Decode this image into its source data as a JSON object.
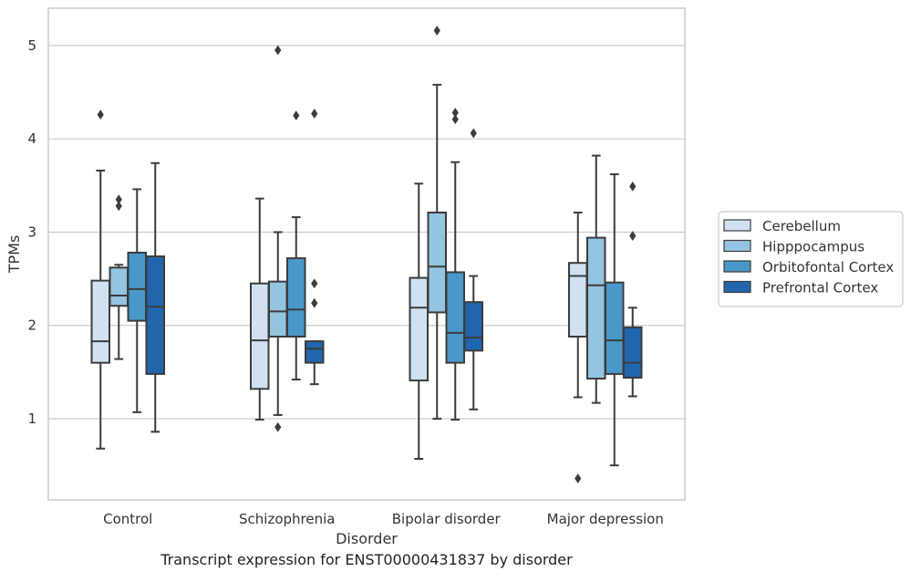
{
  "caption": "Transcript expression for ENST00000431837 by disorder",
  "chart_data": {
    "type": "box",
    "title": "",
    "xlabel": "Disorder",
    "ylabel": "TPMs",
    "categories": [
      "Control",
      "Schizophrenia",
      "Bipolar disorder",
      "Major depression"
    ],
    "ylim": [
      0.13,
      5.4
    ],
    "yticks": [
      "1",
      "2",
      "3",
      "4",
      "5"
    ],
    "grid": "horizontal",
    "legend_position": "right",
    "series": [
      {
        "name": "Cerebellum",
        "color": "#d0e1f2",
        "boxes": [
          {
            "whislo": 0.68,
            "q1": 1.6,
            "med": 1.83,
            "q3": 2.48,
            "whishi": 3.66,
            "fliers": [
              4.26
            ]
          },
          {
            "whislo": 0.99,
            "q1": 1.32,
            "med": 1.84,
            "q3": 2.45,
            "whishi": 3.36,
            "fliers": []
          },
          {
            "whislo": 0.57,
            "q1": 1.41,
            "med": 2.19,
            "q3": 2.51,
            "whishi": 3.52,
            "fliers": []
          },
          {
            "whislo": 1.23,
            "q1": 1.88,
            "med": 2.53,
            "q3": 2.67,
            "whishi": 3.21,
            "fliers": [
              0.36
            ]
          }
        ]
      },
      {
        "name": "Hipppocampus",
        "color": "#94c4df",
        "boxes": [
          {
            "whislo": 1.64,
            "q1": 2.21,
            "med": 2.32,
            "q3": 2.62,
            "whishi": 2.65,
            "fliers": [
              3.28,
              3.35
            ]
          },
          {
            "whislo": 1.04,
            "q1": 1.88,
            "med": 2.15,
            "q3": 2.47,
            "whishi": 3.0,
            "fliers": [
              0.91,
              4.95
            ]
          },
          {
            "whislo": 1.0,
            "q1": 2.14,
            "med": 2.63,
            "q3": 3.21,
            "whishi": 4.58,
            "fliers": [
              5.16
            ]
          },
          {
            "whislo": 1.17,
            "q1": 1.43,
            "med": 2.43,
            "q3": 2.94,
            "whishi": 3.82,
            "fliers": []
          }
        ]
      },
      {
        "name": "Orbitofontal Cortex",
        "color": "#4a98c9",
        "boxes": [
          {
            "whislo": 1.07,
            "q1": 2.05,
            "med": 2.39,
            "q3": 2.78,
            "whishi": 3.46,
            "fliers": []
          },
          {
            "whislo": 1.42,
            "q1": 1.88,
            "med": 2.17,
            "q3": 2.72,
            "whishi": 3.16,
            "fliers": [
              4.25
            ]
          },
          {
            "whislo": 0.99,
            "q1": 1.6,
            "med": 1.92,
            "q3": 2.57,
            "whishi": 3.75,
            "fliers": [
              4.21,
              4.28
            ]
          },
          {
            "whislo": 0.5,
            "q1": 1.48,
            "med": 1.84,
            "q3": 2.46,
            "whishi": 3.62,
            "fliers": []
          }
        ]
      },
      {
        "name": "Prefrontal Cortex",
        "color": "#2166ac",
        "boxes": [
          {
            "whislo": 0.86,
            "q1": 1.48,
            "med": 2.2,
            "q3": 2.74,
            "whishi": 3.74,
            "fliers": []
          },
          {
            "whislo": 1.37,
            "q1": 1.6,
            "med": 1.75,
            "q3": 1.83,
            "whishi": 1.83,
            "fliers": [
              2.24,
              2.45,
              4.27
            ]
          },
          {
            "whislo": 1.1,
            "q1": 1.73,
            "med": 1.87,
            "q3": 2.25,
            "whishi": 2.53,
            "fliers": [
              4.06
            ]
          },
          {
            "whislo": 1.24,
            "q1": 1.44,
            "med": 1.6,
            "q3": 1.98,
            "whishi": 2.19,
            "fliers": [
              2.96,
              3.49
            ]
          }
        ]
      }
    ]
  }
}
